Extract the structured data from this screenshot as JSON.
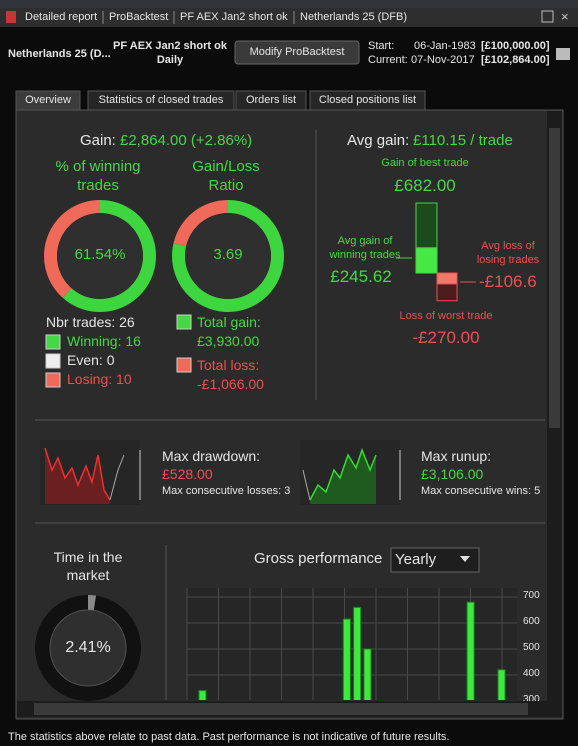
{
  "title_bar": {
    "tabs": [
      "Detailed report",
      "ProBacktest",
      "PF AEX Jan2 short ok",
      "Netherlands 25 (DFB)"
    ]
  },
  "header": {
    "instrument": "Netherlands 25 (D...",
    "system": "PF AEX Jan2 short ok",
    "period": "Daily",
    "button": "Modify ProBacktest",
    "start_label": "Start:",
    "start_date": "06-Jan-1983",
    "start_capital": "[£100,000.00]",
    "current_label": "Current:",
    "current_date": "07-Nov-2017",
    "current_capital": "[£102,864.00]"
  },
  "tabs": [
    "Overview",
    "Statistics of closed trades",
    "Orders list",
    "Closed positions list"
  ],
  "overview": {
    "gain_label": "Gain:",
    "gain_value": "£2,864.00 (+2.86%)",
    "win_title": "% of winning trades",
    "win_ratio": {
      "value": 61.54,
      "label": "61.54%"
    },
    "ratio_title": "Gain/Loss Ratio",
    "ratio": "3.69",
    "nbr_trades": "Nbr trades: 26",
    "winning": "Winning: 16",
    "even": "Even: 0",
    "losing": "Losing: 10",
    "total_gain_label": "Total gain:",
    "total_gain": {
      "value": 3930,
      "label": "£3,930.00"
    },
    "total_loss_label": "Total loss:",
    "total_loss": {
      "value": -1066,
      "label": "-£1,066.00"
    },
    "avg_gain_label": "Avg gain:",
    "avg_gain": "£110.15 / trade",
    "best_trade_label": "Gain of best trade",
    "best_trade": {
      "value": 682,
      "label": "£682.00"
    },
    "avg_win_label": "Avg gain of winning trades",
    "avg_win": {
      "value": 245.62,
      "label": "£245.62"
    },
    "avg_loss_label": "Avg loss of losing trades",
    "avg_loss": {
      "value": -106.6,
      "label": "-£106.6"
    },
    "worst_label": "Loss of worst trade",
    "worst": {
      "value": -270,
      "label": "-£270.00"
    },
    "drawdown_label": "Max drawdown:",
    "drawdown": "£528.00",
    "consec_losses": "Max consecutive losses: 3",
    "runup_label": "Max runup:",
    "runup": "£3,106.00",
    "consec_wins": "Max consecutive wins: 5",
    "time_label": "Time in the market",
    "time_in_market": {
      "value": 2.41,
      "label": "2.41%"
    }
  },
  "chart_data": {
    "type": "bar",
    "title": "Gross performance",
    "period": "Yearly",
    "color": "#3ee83e",
    "categories": [
      null,
      null,
      null,
      null,
      null,
      null,
      null,
      null,
      null,
      null,
      null,
      null,
      null,
      null,
      null,
      null,
      null,
      null,
      null,
      null,
      null,
      null,
      null,
      null,
      null,
      null,
      null,
      null,
      null,
      null,
      null,
      null
    ],
    "values": [
      null,
      340,
      null,
      null,
      null,
      null,
      null,
      null,
      null,
      null,
      null,
      null,
      null,
      null,
      null,
      615,
      660,
      500,
      null,
      null,
      null,
      null,
      null,
      null,
      null,
      null,
      null,
      680,
      null,
      null,
      420,
      null
    ],
    "ylim": [
      300,
      700
    ],
    "yticks": [
      700,
      600,
      500,
      400,
      300
    ],
    "grid": true
  },
  "footer": "The statistics above relate to past data. Past performance is not indicative of future results."
}
